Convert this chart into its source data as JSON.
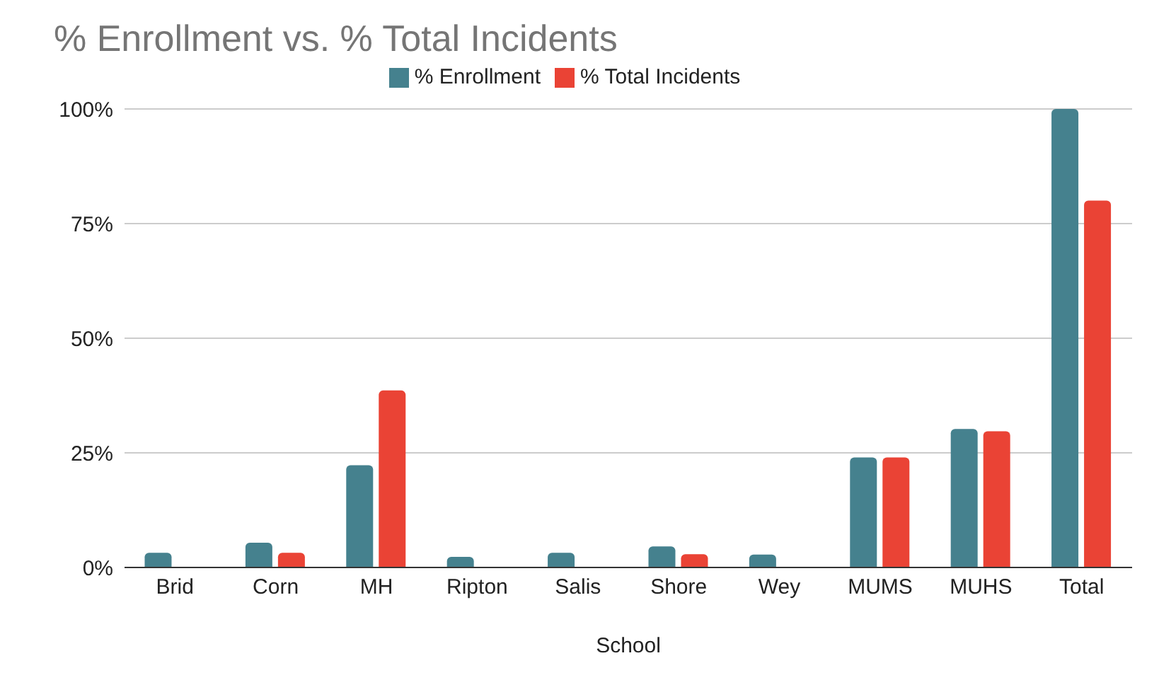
{
  "chart_data": {
    "type": "bar",
    "title": "% Enrollment vs. % Total Incidents",
    "xlabel": "School",
    "categories": [
      "Brid",
      "Corn",
      "MH",
      "Ripton",
      "Salis",
      "Shore",
      "Wey",
      "MUMS",
      "MUHS",
      "Total"
    ],
    "series": [
      {
        "name": "% Enrollment",
        "color": "#45818e",
        "values": [
          3.2,
          5.4,
          22.3,
          2.3,
          3.2,
          4.6,
          2.8,
          24.0,
          30.2,
          100
        ]
      },
      {
        "name": "% Total Incidents",
        "color": "#ea4335",
        "values": [
          0,
          3.2,
          38.6,
          0,
          0,
          2.9,
          0,
          24.0,
          29.7,
          80
        ]
      }
    ],
    "ylim": [
      0,
      100
    ],
    "yticks": [
      {
        "value": 0,
        "label": "0%"
      },
      {
        "value": 25,
        "label": "25%"
      },
      {
        "value": 50,
        "label": "50%"
      },
      {
        "value": 75,
        "label": "75%"
      },
      {
        "value": 100,
        "label": "100%"
      }
    ],
    "grid": "y",
    "legend": "top"
  }
}
